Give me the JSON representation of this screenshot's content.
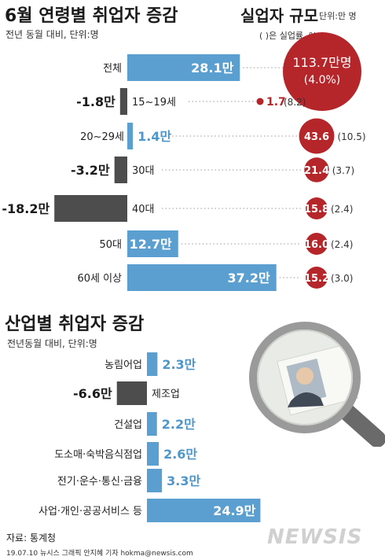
{
  "header": {
    "title": "6월 연령별 취업자 증감",
    "subtitle": "전년 동월 대비, 단위:명",
    "unemp_title": "실업자 규모",
    "unemp_unit": "단위:만 명",
    "unemp_note": "( )은 실업률, %"
  },
  "section2": {
    "title": "산업별 취업자 증감",
    "subtitle": "전년동월 대비, 단위:명"
  },
  "footer": {
    "source": "자료: 통계청",
    "credit": "19.07.10 뉴시스 그래픽 안지혜 기자 hokma@newsis.com",
    "logo": "NEWSIS"
  },
  "colors": {
    "positive_bar": "#5a9fcf",
    "negative_bar": "#4d4d4d",
    "unemp_circle": "#b5262b",
    "positive_text": "#4f97ca"
  },
  "chart_data": [
    {
      "type": "bar",
      "title": "6월 연령별 취업자 증감",
      "categories": [
        "전체",
        "15~19세",
        "20~29세",
        "30대",
        "40대",
        "50대",
        "60세 이상"
      ],
      "values": [
        28.1,
        -1.8,
        1.4,
        -3.2,
        -18.2,
        12.7,
        37.2
      ],
      "labels": [
        "28.1만",
        "-1.8만",
        "1.4만",
        "-3.2만",
        "-18.2만",
        "12.7만",
        "37.2만"
      ],
      "xlim": [
        -18.2,
        37.2
      ]
    },
    {
      "type": "scatter",
      "title": "실업자 규모",
      "categories": [
        "전체",
        "15~19세",
        "20~29세",
        "30대",
        "40대",
        "50대",
        "60세 이상"
      ],
      "values": [
        113.7,
        1.7,
        43.6,
        21.4,
        15.8,
        16.0,
        15.2
      ],
      "value_labels": [
        "113.7만명",
        "1.7",
        "43.6",
        "21.4",
        "15.8",
        "16.0",
        "15.2"
      ],
      "rates": [
        "(4.0%)",
        "(8.2)",
        "(10.5)",
        "(3.7)",
        "(2.4)",
        "(2.4)",
        "(3.0)"
      ]
    },
    {
      "type": "bar",
      "title": "산업별 취업자 증감",
      "categories": [
        "농림어업",
        "제조업",
        "건설업",
        "도소매·숙박음식점업",
        "전기·운수·통신·금융",
        "사업·개인·공공서비스 등"
      ],
      "values": [
        2.3,
        -6.6,
        2.2,
        2.6,
        3.3,
        24.9
      ],
      "labels": [
        "2.3만",
        "-6.6만",
        "2.2만",
        "2.6만",
        "3.3만",
        "24.9만"
      ],
      "xlim": [
        -6.6,
        24.9
      ]
    }
  ]
}
